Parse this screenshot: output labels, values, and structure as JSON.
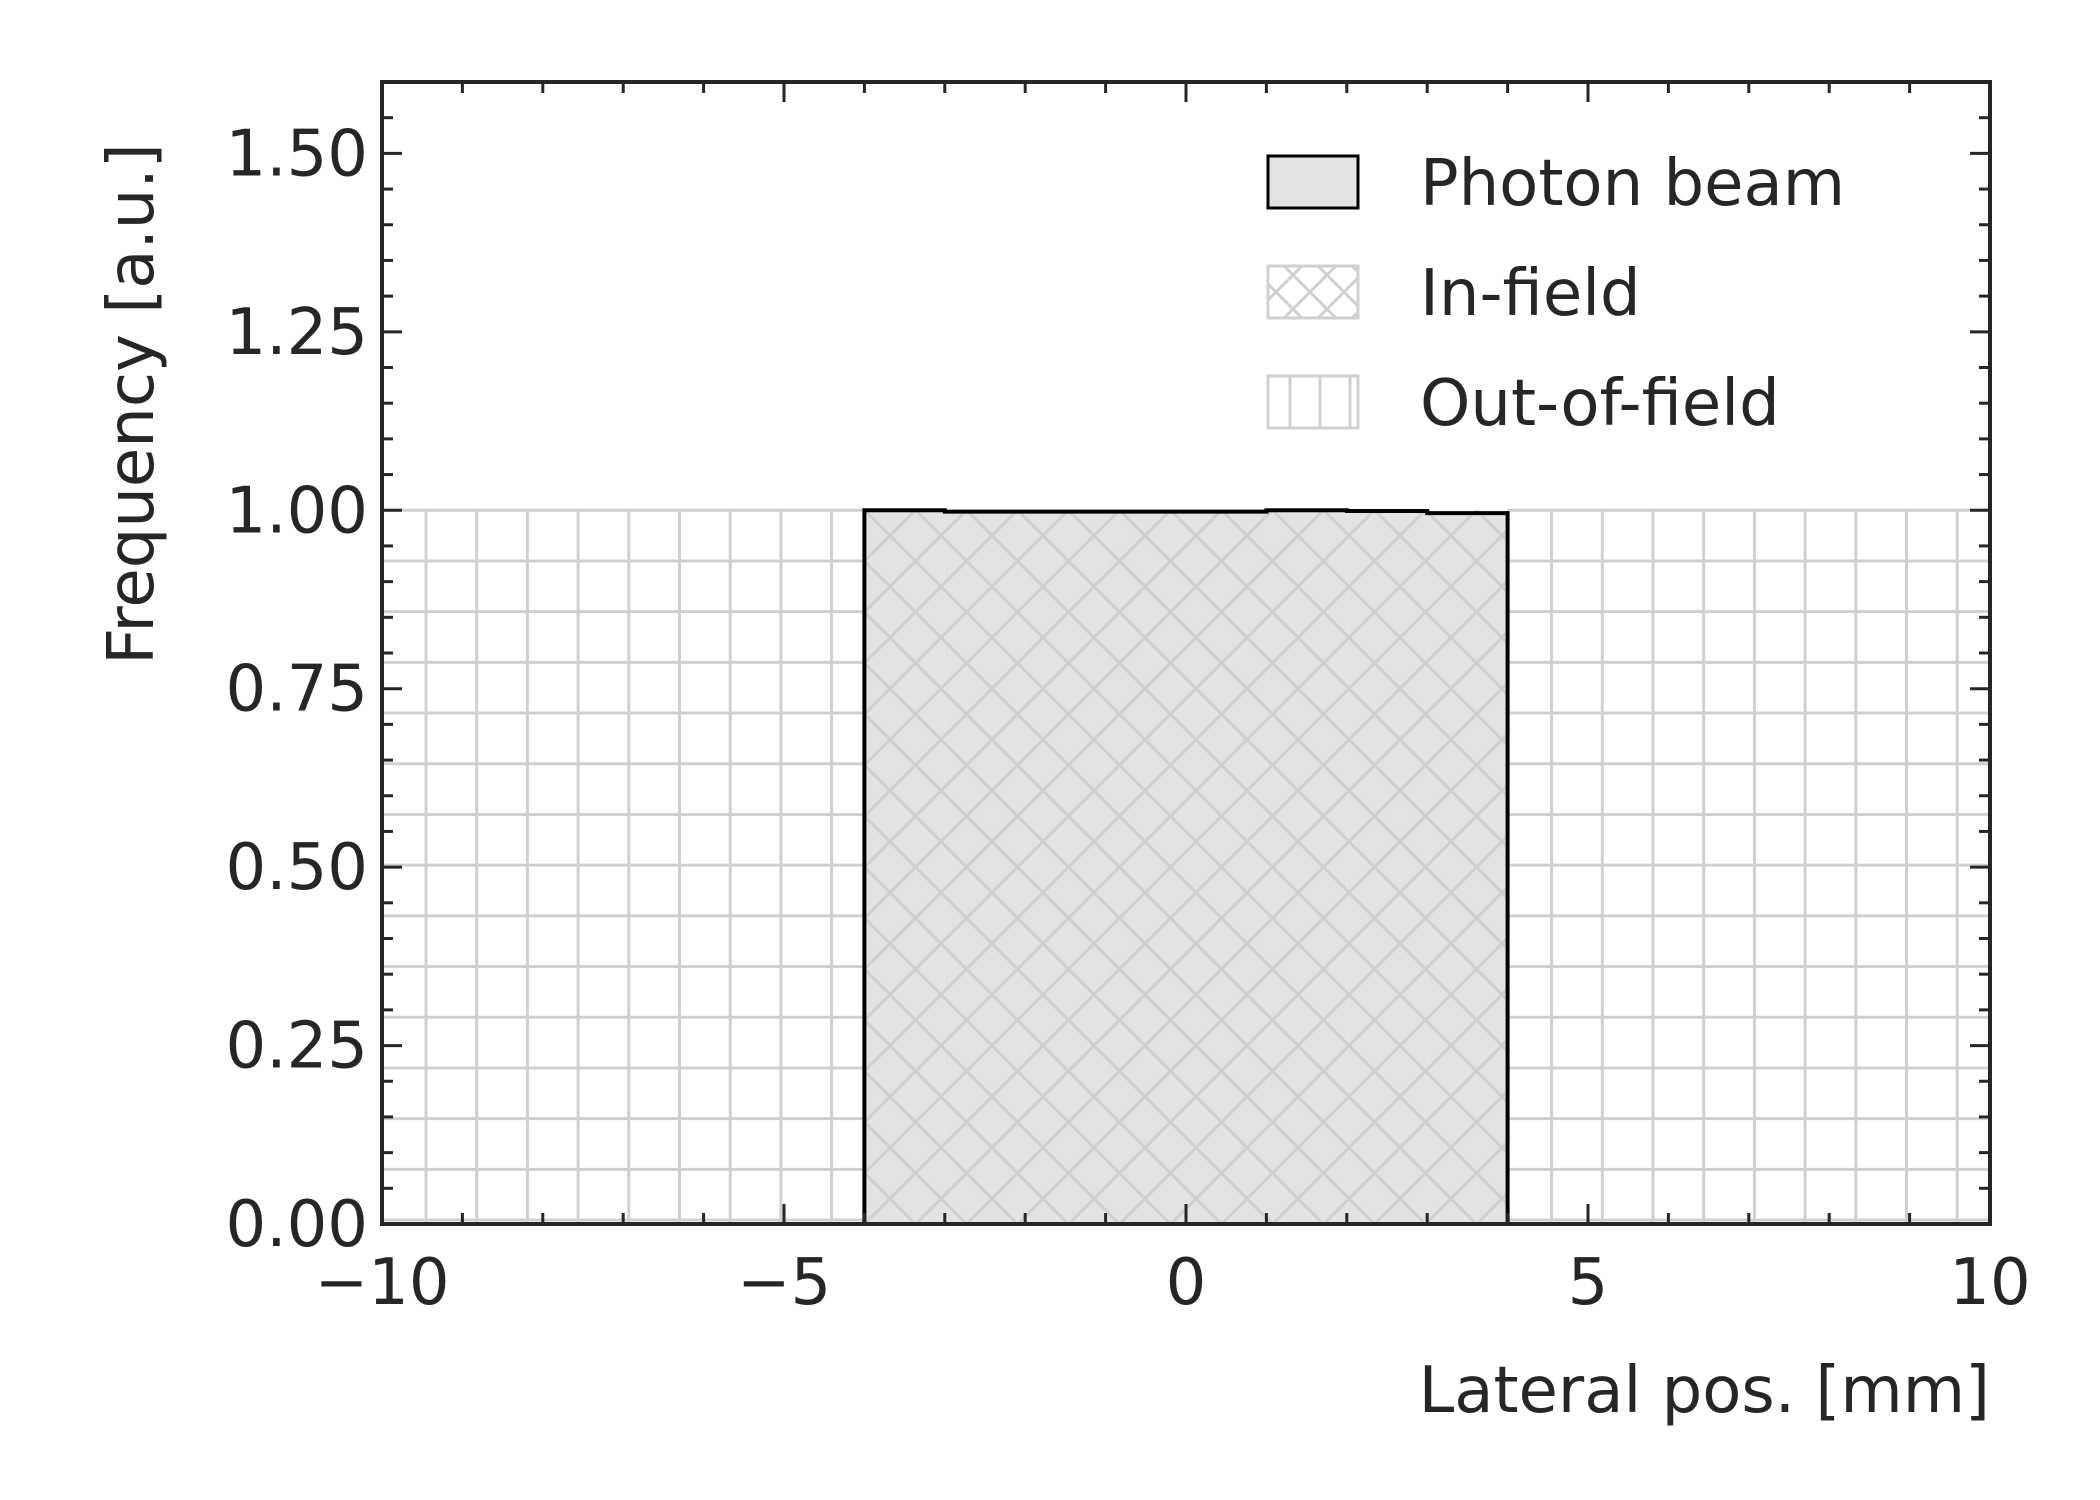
{
  "chart_data": {
    "type": "histogram",
    "xlabel": "Lateral pos. [mm]",
    "ylabel": "Frequency [a.u.]",
    "xlim": [
      -10,
      10
    ],
    "ylim": [
      0,
      1.6
    ],
    "xticks": [
      -10,
      -5,
      0,
      5,
      10
    ],
    "xtick_labels": [
      "−10",
      "−5",
      "0",
      "5",
      "10"
    ],
    "yticks": [
      0,
      0.25,
      0.5,
      0.75,
      1.0,
      1.25,
      1.5
    ],
    "ytick_labels": [
      "0.00",
      "0.25",
      "0.50",
      "0.75",
      "1.00",
      "1.25",
      "1.50"
    ],
    "grid": false,
    "legend_position": "top-right",
    "series": [
      {
        "name": "Photon beam",
        "style": "step-filled",
        "fill": "#e3e3e3",
        "edge": "#000000",
        "bin_edges": [
          -4,
          -3,
          -2,
          -1,
          0,
          1,
          2,
          3,
          4
        ],
        "values": [
          1.0,
          0.998,
          0.998,
          0.998,
          0.998,
          1.0,
          0.999,
          0.996
        ]
      },
      {
        "name": "In-field",
        "style": "hatch-crosshatch",
        "color": "#d0d0d0",
        "x_range": [
          -4,
          4
        ],
        "value": 1.0
      },
      {
        "name": "Out-of-field",
        "style": "hatch-grid",
        "color": "#d0d0d0",
        "x_ranges": [
          [
            -10,
            -4
          ],
          [
            4,
            10
          ]
        ],
        "value": 1.0
      }
    ]
  }
}
